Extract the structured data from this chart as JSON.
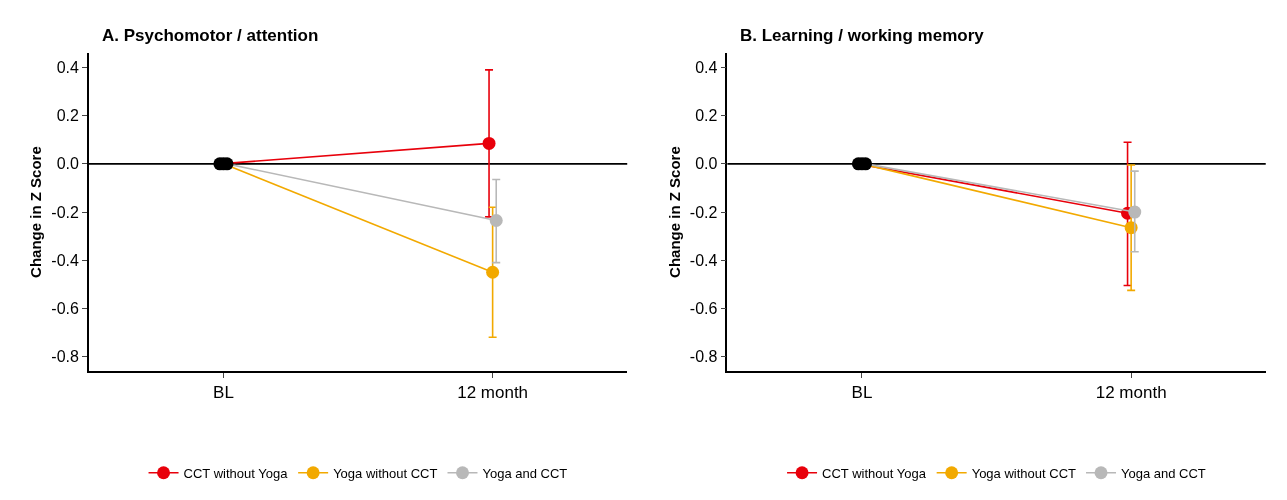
{
  "chart_data": [
    {
      "type": "line",
      "title": "A. Psychomotor / attention",
      "ylabel": "Change in Z Score",
      "categories": [
        "BL",
        "12 month"
      ],
      "ylim": [
        -0.86,
        0.46
      ],
      "yticks": [
        -0.8,
        -0.6,
        -0.4,
        -0.2,
        {
          "value": 0,
          "label": "0.0"
        },
        0.2,
        0.4
      ],
      "marker": "circle",
      "legend": "bottom",
      "grid": false,
      "ref_lines": [
        {
          "axis": "y",
          "value": 0,
          "color": "#000000"
        }
      ],
      "series": [
        {
          "name": "CCT without Yoga",
          "color": "#e8000b",
          "values": [
            0,
            0.085
          ],
          "errors": [
            null,
            [
              -0.22,
              0.39
            ]
          ]
        },
        {
          "name": "Yoga without CCT",
          "color": "#f2a900",
          "values": [
            0,
            -0.45
          ],
          "errors": [
            null,
            [
              -0.72,
              -0.18
            ]
          ]
        },
        {
          "name": "Yoga and CCT",
          "color": "#b8b8b8",
          "values": [
            0,
            -0.235
          ],
          "errors": [
            null,
            [
              -0.41,
              -0.065
            ]
          ]
        }
      ]
    },
    {
      "type": "line",
      "title": "B. Learning / working memory",
      "ylabel": "Change in Z Score",
      "categories": [
        "BL",
        "12 month"
      ],
      "ylim": [
        -0.86,
        0.46
      ],
      "yticks": [
        -0.8,
        -0.6,
        -0.4,
        -0.2,
        {
          "value": 0,
          "label": "0.0"
        },
        0.2,
        0.4
      ],
      "marker": "circle",
      "legend": "bottom",
      "grid": false,
      "ref_lines": [
        {
          "axis": "y",
          "value": 0,
          "color": "#000000"
        }
      ],
      "series": [
        {
          "name": "CCT without Yoga",
          "color": "#e8000b",
          "values": [
            0,
            -0.205
          ],
          "errors": [
            null,
            [
              -0.505,
              0.09
            ]
          ]
        },
        {
          "name": "Yoga without CCT",
          "color": "#f2a900",
          "values": [
            0,
            -0.265
          ],
          "errors": [
            null,
            [
              -0.525,
              -0.005
            ]
          ]
        },
        {
          "name": "Yoga and CCT",
          "color": "#b8b8b8",
          "values": [
            0,
            -0.2
          ],
          "errors": [
            null,
            [
              -0.365,
              -0.03
            ]
          ]
        }
      ]
    }
  ]
}
